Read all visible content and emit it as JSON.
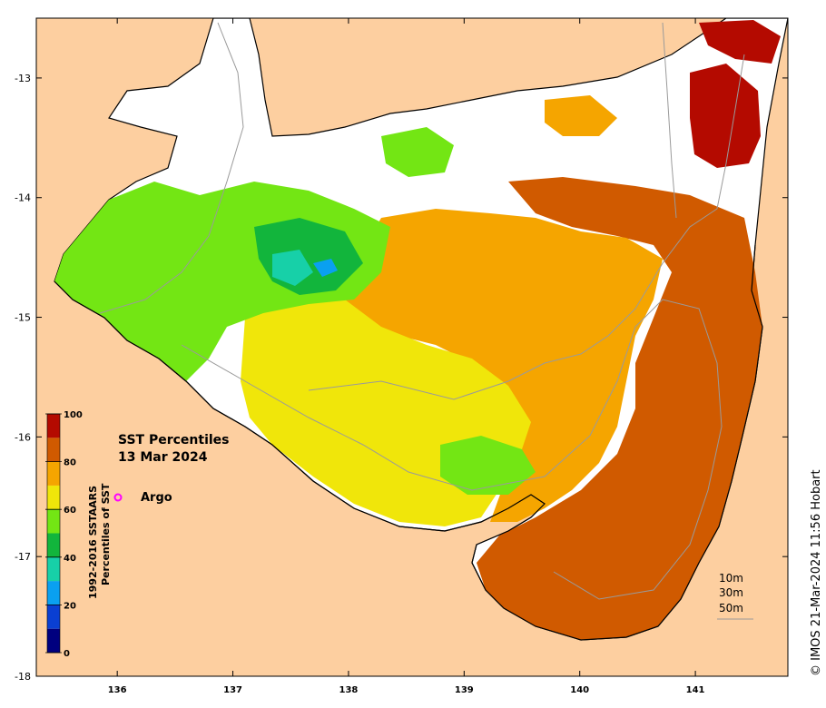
{
  "map": {
    "title": "SST Percentiles",
    "date": "13 Mar 2024",
    "credit": "© IMOS 21-Mar-2024 11:56 Hobart",
    "colors": {
      "land": "#fdcfa0",
      "ocean_cloud": "#ffffff",
      "coast": "#000000",
      "isobath": "#9a9a9a"
    }
  },
  "axes": {
    "x_ticks": [
      "136",
      "137",
      "138",
      "139",
      "140",
      "141"
    ],
    "x_values": [
      136,
      137,
      138,
      139,
      140,
      141
    ],
    "y_ticks": [
      "-13",
      "-14",
      "-15",
      "-16",
      "-17",
      "-18"
    ],
    "y_values": [
      -13,
      -14,
      -15,
      -16,
      -17,
      -18
    ],
    "lon_range": [
      135.3,
      141.8
    ],
    "lat_range": [
      -12.5,
      -18
    ]
  },
  "colorbar": {
    "title_line1": "1992-2016 SSTAARS",
    "title_line2": "Percentiles of SST",
    "tick_labels": [
      "0",
      "20",
      "40",
      "60",
      "80",
      "100"
    ],
    "segments": [
      {
        "from": 0,
        "to": 10,
        "color": "#00007f"
      },
      {
        "from": 10,
        "to": 20,
        "color": "#0a3fd2"
      },
      {
        "from": 20,
        "to": 30,
        "color": "#0aa0f0"
      },
      {
        "from": 30,
        "to": 40,
        "color": "#17d0a8"
      },
      {
        "from": 40,
        "to": 50,
        "color": "#12b53c"
      },
      {
        "from": 50,
        "to": 60,
        "color": "#73e614"
      },
      {
        "from": 60,
        "to": 70,
        "color": "#f0e60a"
      },
      {
        "from": 70,
        "to": 80,
        "color": "#f5a500"
      },
      {
        "from": 80,
        "to": 90,
        "color": "#d05a00"
      },
      {
        "from": 90,
        "to": 100,
        "color": "#b40a00"
      }
    ]
  },
  "legend": {
    "argo_label": "Argo",
    "argo_marker_color": "#ff00ff",
    "depth_labels": [
      "10m",
      "30m",
      "50m"
    ]
  }
}
